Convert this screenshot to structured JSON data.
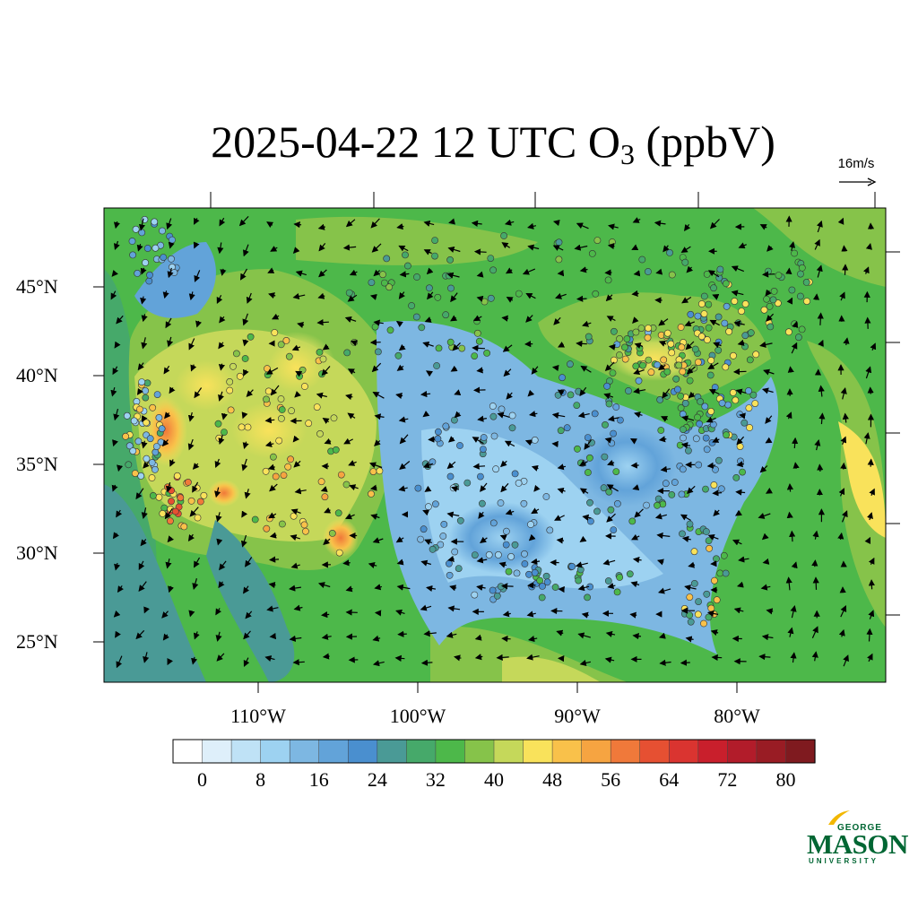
{
  "title": {
    "text": "2025-04-22 12 UTC O",
    "subscript": "3",
    "units": " (ppbV)"
  },
  "reference_vector": {
    "label": "16m/s"
  },
  "latitude_labels": [
    "45°N",
    "40°N",
    "35°N",
    "30°N",
    "25°N"
  ],
  "longitude_labels": [
    "110°W",
    "100°W",
    "90°W",
    "80°W"
  ],
  "colorbar": {
    "tick_labels": [
      "0",
      "8",
      "16",
      "24",
      "32",
      "40",
      "48",
      "56",
      "64",
      "72",
      "80"
    ],
    "colors": [
      "#ffffff",
      "#deeffa",
      "#bfe2f6",
      "#9dd2f1",
      "#7db7e2",
      "#62a3d9",
      "#4a8fcf",
      "#4a9a96",
      "#46a96a",
      "#4db84a",
      "#86c34a",
      "#c5d85a",
      "#f9e25b",
      "#f9c14a",
      "#f6a441",
      "#f0793a",
      "#e65032",
      "#da3430",
      "#c91f2c",
      "#b21c2a",
      "#991c24",
      "#7f1a1f"
    ]
  },
  "logo": {
    "line1": "GEORGE",
    "line2": "MASON",
    "line3": "UNIVERSITY"
  }
}
